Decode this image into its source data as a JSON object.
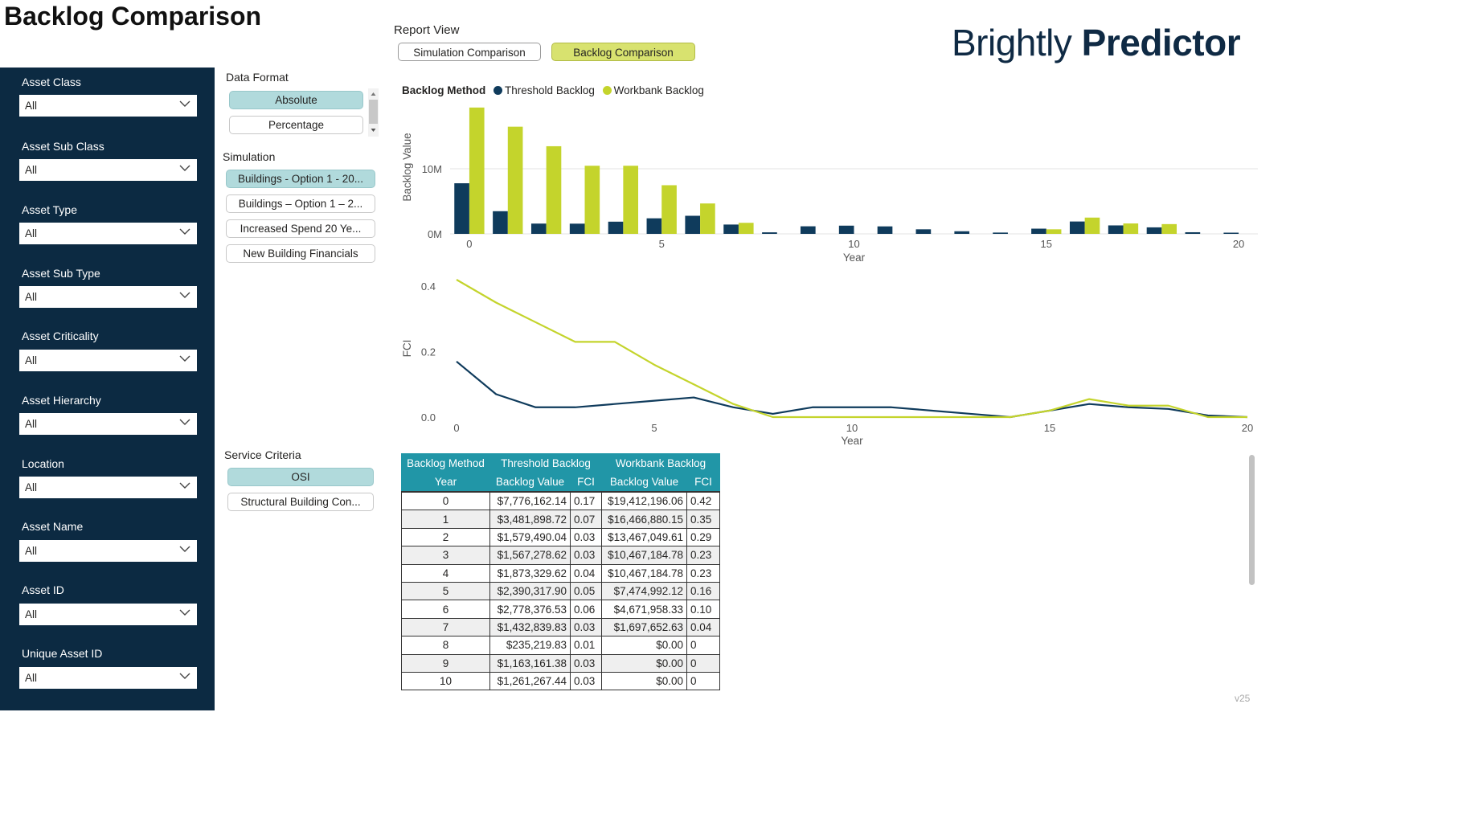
{
  "page": {
    "title": "Backlog Comparison",
    "brand_light": "Brightly",
    "brand_bold": "Predictor",
    "version": "v25"
  },
  "report_view": {
    "label": "Report View",
    "buttons": [
      "Simulation Comparison",
      "Backlog Comparison"
    ],
    "selected": "Backlog Comparison"
  },
  "filters": [
    {
      "label": "Asset Class",
      "value": "All"
    },
    {
      "label": "Asset Sub Class",
      "value": "All"
    },
    {
      "label": "Asset Type",
      "value": "All"
    },
    {
      "label": "Asset Sub Type",
      "value": "All"
    },
    {
      "label": "Asset Criticality",
      "value": "All"
    },
    {
      "label": "Asset Hierarchy",
      "value": "All"
    },
    {
      "label": "Location",
      "value": "All"
    },
    {
      "label": "Asset Name",
      "value": "All"
    },
    {
      "label": "Asset ID",
      "value": "All"
    },
    {
      "label": "Unique Asset ID",
      "value": "All"
    }
  ],
  "data_format": {
    "title": "Data Format",
    "options": [
      "Absolute",
      "Percentage"
    ],
    "selected": "Absolute"
  },
  "simulation": {
    "title": "Simulation",
    "options": [
      "Buildings - Option 1 - 20...",
      "Buildings – Option 1 – 2...",
      "Increased Spend 20 Ye...",
      "New Building Financials"
    ],
    "selected": "Buildings - Option 1 - 20..."
  },
  "service_criteria": {
    "title": "Service Criteria",
    "options": [
      "OSI",
      "Structural Building Con..."
    ],
    "selected": "OSI"
  },
  "colors": {
    "threshold": "#0f3b5c",
    "workbank": "#c4d42c",
    "sidebar": "#0c2a42",
    "table_header": "#2196a7"
  },
  "legend": {
    "title": "Backlog Method",
    "items": [
      "Threshold Backlog",
      "Workbank Backlog"
    ]
  },
  "chart_data": [
    {
      "type": "bar",
      "xlabel": "Year",
      "ylabel": "Backlog Value",
      "x": [
        0,
        1,
        2,
        3,
        4,
        5,
        6,
        7,
        8,
        9,
        10,
        11,
        12,
        13,
        14,
        15,
        16,
        17,
        18,
        19,
        20
      ],
      "xticks": [
        0,
        5,
        10,
        15,
        20
      ],
      "yticks": [
        0,
        10000000
      ],
      "ytick_labels": [
        "0M",
        "10M"
      ],
      "ylim": [
        0,
        20500000
      ],
      "grid": true,
      "series": [
        {
          "name": "Threshold Backlog",
          "values": [
            7776162.14,
            3481898.72,
            1579490.04,
            1567278.62,
            1873329.62,
            2390317.9,
            2778376.53,
            1432839.83,
            235219.83,
            1163161.38,
            1261267.44,
            1150000,
            700000,
            400000,
            200000,
            800000,
            1900000,
            1300000,
            1000000,
            250000,
            100000
          ]
        },
        {
          "name": "Workbank Backlog",
          "values": [
            19412196.06,
            16466880.15,
            13467049.61,
            10467184.78,
            10467184.78,
            7474992.12,
            4671958.33,
            1697652.63,
            0,
            0,
            0,
            0,
            0,
            0,
            0,
            700000,
            2500000,
            1600000,
            1500000,
            0,
            0
          ]
        }
      ]
    },
    {
      "type": "line",
      "xlabel": "Year",
      "ylabel": "FCI",
      "x": [
        0,
        1,
        2,
        3,
        4,
        5,
        6,
        7,
        8,
        9,
        10,
        11,
        12,
        13,
        14,
        15,
        16,
        17,
        18,
        19,
        20
      ],
      "xticks": [
        0,
        5,
        10,
        15,
        20
      ],
      "yticks": [
        0.0,
        0.2,
        0.4
      ],
      "ytick_labels": [
        "0.0",
        "0.2",
        "0.4"
      ],
      "ylim": [
        0,
        0.42
      ],
      "series": [
        {
          "name": "Threshold Backlog",
          "values": [
            0.17,
            0.07,
            0.03,
            0.03,
            0.04,
            0.05,
            0.06,
            0.03,
            0.01,
            0.03,
            0.03,
            0.03,
            0.02,
            0.01,
            0.0,
            0.02,
            0.04,
            0.03,
            0.025,
            0.005,
            0.0
          ]
        },
        {
          "name": "Workbank Backlog",
          "values": [
            0.42,
            0.35,
            0.29,
            0.23,
            0.23,
            0.16,
            0.1,
            0.04,
            0,
            0,
            0,
            0,
            0,
            0,
            0,
            0.02,
            0.055,
            0.035,
            0.035,
            0,
            0
          ]
        }
      ]
    },
    {
      "type": "table",
      "header_row1": [
        "Backlog Method",
        "Threshold Backlog",
        "Workbank Backlog"
      ],
      "header_row2": [
        "Year",
        "Backlog Value",
        "FCI",
        "Backlog Value",
        "FCI"
      ],
      "rows": [
        [
          "0",
          "$7,776,162.14",
          "0.17",
          "$19,412,196.06",
          "0.42"
        ],
        [
          "1",
          "$3,481,898.72",
          "0.07",
          "$16,466,880.15",
          "0.35"
        ],
        [
          "2",
          "$1,579,490.04",
          "0.03",
          "$13,467,049.61",
          "0.29"
        ],
        [
          "3",
          "$1,567,278.62",
          "0.03",
          "$10,467,184.78",
          "0.23"
        ],
        [
          "4",
          "$1,873,329.62",
          "0.04",
          "$10,467,184.78",
          "0.23"
        ],
        [
          "5",
          "$2,390,317.90",
          "0.05",
          "$7,474,992.12",
          "0.16"
        ],
        [
          "6",
          "$2,778,376.53",
          "0.06",
          "$4,671,958.33",
          "0.10"
        ],
        [
          "7",
          "$1,432,839.83",
          "0.03",
          "$1,697,652.63",
          "0.04"
        ],
        [
          "8",
          "$235,219.83",
          "0.01",
          "$0.00",
          "0"
        ],
        [
          "9",
          "$1,163,161.38",
          "0.03",
          "$0.00",
          "0"
        ],
        [
          "10",
          "$1,261,267.44",
          "0.03",
          "$0.00",
          "0"
        ]
      ]
    }
  ]
}
